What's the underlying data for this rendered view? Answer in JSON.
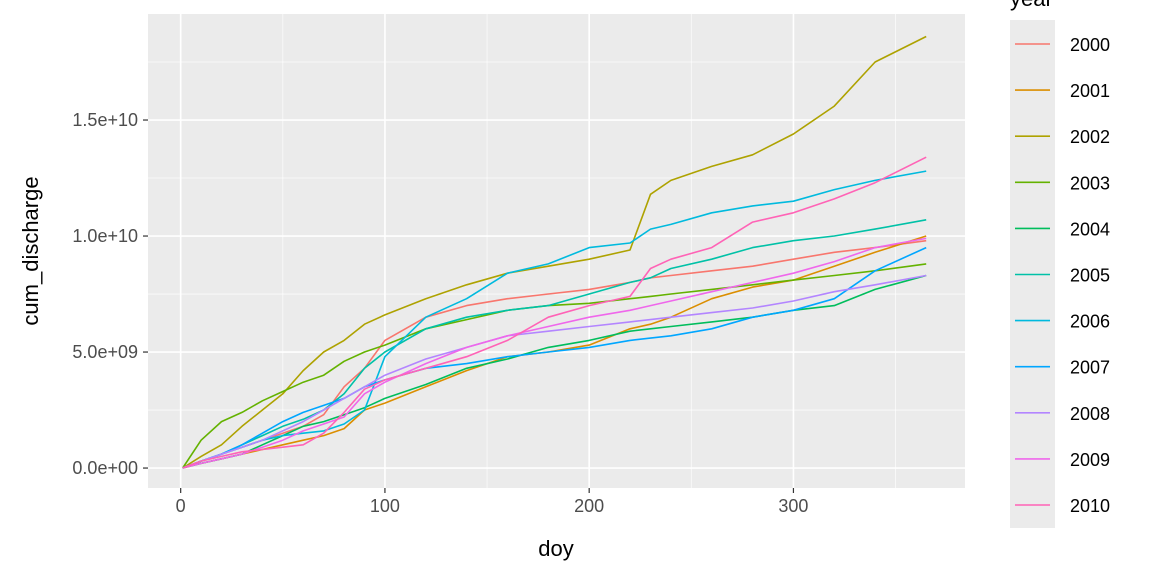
{
  "chart_data": {
    "type": "line",
    "title": "",
    "xlabel": "doy",
    "ylabel": "cum_discharge",
    "xlim": [
      -16,
      384
    ],
    "ylim": [
      -860000000.0,
      19570000000.0
    ],
    "x_ticks": [
      0,
      100,
      200,
      300
    ],
    "x_tick_labels": [
      "0",
      "100",
      "200",
      "300"
    ],
    "y_ticks": [
      0,
      5000000000.0,
      10000000000.0,
      15000000000.0
    ],
    "y_tick_labels": [
      "0.0e+00",
      "5.0e+09",
      "1.0e+10",
      "1.5e+10"
    ],
    "grid": true,
    "legend": {
      "title": "year",
      "placement": "right"
    },
    "x": [
      1,
      10,
      20,
      30,
      40,
      50,
      60,
      70,
      80,
      90,
      100,
      120,
      140,
      160,
      180,
      200,
      220,
      230,
      240,
      260,
      280,
      300,
      320,
      340,
      365
    ],
    "series": [
      {
        "name": "2000",
        "color": "#F8766D",
        "values": [
          0,
          300000000.0,
          600000000.0,
          900000000.0,
          1200000000.0,
          1500000000.0,
          1800000000.0,
          2300000000.0,
          3500000000.0,
          4300000000.0,
          5500000000.0,
          6500000000.0,
          7000000000.0,
          7300000000.0,
          7500000000.0,
          7700000000.0,
          8000000000.0,
          8200000000.0,
          8300000000.0,
          8500000000.0,
          8700000000.0,
          9000000000.0,
          9300000000.0,
          9500000000.0,
          9800000000.0
        ]
      },
      {
        "name": "2001",
        "color": "#DB8E00",
        "values": [
          0,
          200000000.0,
          400000000.0,
          600000000.0,
          800000000.0,
          1000000000.0,
          1200000000.0,
          1400000000.0,
          1700000000.0,
          2500000000.0,
          2800000000.0,
          3500000000.0,
          4200000000.0,
          4800000000.0,
          5000000000.0,
          5300000000.0,
          6000000000.0,
          6200000000.0,
          6500000000.0,
          7300000000.0,
          7800000000.0,
          8100000000.0,
          8700000000.0,
          9300000000.0,
          10000000000.0
        ]
      },
      {
        "name": "2002",
        "color": "#AEA200",
        "values": [
          0,
          500000000.0,
          1000000000.0,
          1800000000.0,
          2500000000.0,
          3200000000.0,
          4200000000.0,
          5000000000.0,
          5500000000.0,
          6200000000.0,
          6600000000.0,
          7300000000.0,
          7900000000.0,
          8400000000.0,
          8700000000.0,
          9000000000.0,
          9400000000.0,
          11800000000.0,
          12400000000.0,
          13000000000.0,
          13500000000.0,
          14400000000.0,
          15600000000.0,
          17500000000.0,
          18600000000.0
        ]
      },
      {
        "name": "2003",
        "color": "#64B200",
        "values": [
          0,
          1200000000.0,
          2000000000.0,
          2400000000.0,
          2900000000.0,
          3300000000.0,
          3700000000.0,
          4000000000.0,
          4600000000.0,
          5000000000.0,
          5300000000.0,
          6000000000.0,
          6400000000.0,
          6800000000.0,
          7000000000.0,
          7100000000.0,
          7300000000.0,
          7400000000.0,
          7500000000.0,
          7700000000.0,
          7900000000.0,
          8100000000.0,
          8300000000.0,
          8500000000.0,
          8800000000.0
        ]
      },
      {
        "name": "2004",
        "color": "#00BD5C",
        "values": [
          0,
          200000000.0,
          400000000.0,
          600000000.0,
          1000000000.0,
          1400000000.0,
          1800000000.0,
          2000000000.0,
          2300000000.0,
          2600000000.0,
          3000000000.0,
          3600000000.0,
          4300000000.0,
          4700000000.0,
          5200000000.0,
          5500000000.0,
          5900000000.0,
          6000000000.0,
          6100000000.0,
          6300000000.0,
          6500000000.0,
          6800000000.0,
          7000000000.0,
          7700000000.0,
          8300000000.0
        ]
      },
      {
        "name": "2005",
        "color": "#00C1A7",
        "values": [
          0,
          300000000.0,
          600000000.0,
          1000000000.0,
          1400000000.0,
          1800000000.0,
          2100000000.0,
          2500000000.0,
          3200000000.0,
          4300000000.0,
          5000000000.0,
          6000000000.0,
          6500000000.0,
          6800000000.0,
          7000000000.0,
          7500000000.0,
          8000000000.0,
          8200000000.0,
          8600000000.0,
          9000000000.0,
          9500000000.0,
          9800000000.0,
          10000000000.0,
          10300000000.0,
          10700000000.0
        ]
      },
      {
        "name": "2006",
        "color": "#00BADE",
        "values": [
          0,
          300000000.0,
          600000000.0,
          900000000.0,
          1200000000.0,
          1400000000.0,
          1500000000.0,
          1600000000.0,
          1900000000.0,
          2500000000.0,
          4800000000.0,
          6500000000.0,
          7300000000.0,
          8400000000.0,
          8800000000.0,
          9500000000.0,
          9700000000.0,
          10300000000.0,
          10500000000.0,
          11000000000.0,
          11300000000.0,
          11500000000.0,
          12000000000.0,
          12400000000.0,
          12800000000.0
        ]
      },
      {
        "name": "2007",
        "color": "#00A6FF",
        "values": [
          0,
          300000000.0,
          600000000.0,
          1000000000.0,
          1500000000.0,
          2000000000.0,
          2400000000.0,
          2700000000.0,
          3000000000.0,
          3500000000.0,
          3800000000.0,
          4300000000.0,
          4500000000.0,
          4800000000.0,
          5000000000.0,
          5200000000.0,
          5500000000.0,
          5600000000.0,
          5700000000.0,
          6000000000.0,
          6500000000.0,
          6800000000.0,
          7300000000.0,
          8500000000.0,
          9500000000.0
        ]
      },
      {
        "name": "2008",
        "color": "#B385FF",
        "values": [
          0,
          300000000.0,
          600000000.0,
          900000000.0,
          1200000000.0,
          1600000000.0,
          2000000000.0,
          2500000000.0,
          3000000000.0,
          3500000000.0,
          4000000000.0,
          4700000000.0,
          5200000000.0,
          5700000000.0,
          5900000000.0,
          6100000000.0,
          6300000000.0,
          6400000000.0,
          6500000000.0,
          6700000000.0,
          6900000000.0,
          7200000000.0,
          7600000000.0,
          7900000000.0,
          8300000000.0
        ]
      },
      {
        "name": "2009",
        "color": "#EF67EB",
        "values": [
          0,
          200000000.0,
          400000000.0,
          600000000.0,
          900000000.0,
          1200000000.0,
          1600000000.0,
          1900000000.0,
          2200000000.0,
          3200000000.0,
          3700000000.0,
          4500000000.0,
          5200000000.0,
          5700000000.0,
          6100000000.0,
          6500000000.0,
          6800000000.0,
          7000000000.0,
          7200000000.0,
          7600000000.0,
          8000000000.0,
          8400000000.0,
          8900000000.0,
          9500000000.0,
          9900000000.0
        ]
      },
      {
        "name": "2010",
        "color": "#FF63B6",
        "values": [
          0,
          300000000.0,
          500000000.0,
          700000000.0,
          800000000.0,
          900000000.0,
          1000000000.0,
          1500000000.0,
          2400000000.0,
          3400000000.0,
          3800000000.0,
          4300000000.0,
          4800000000.0,
          5500000000.0,
          6500000000.0,
          7000000000.0,
          7400000000.0,
          8600000000.0,
          9000000000.0,
          9500000000.0,
          10600000000.0,
          11000000000.0,
          11600000000.0,
          12300000000.0,
          13400000000.0
        ]
      }
    ]
  }
}
